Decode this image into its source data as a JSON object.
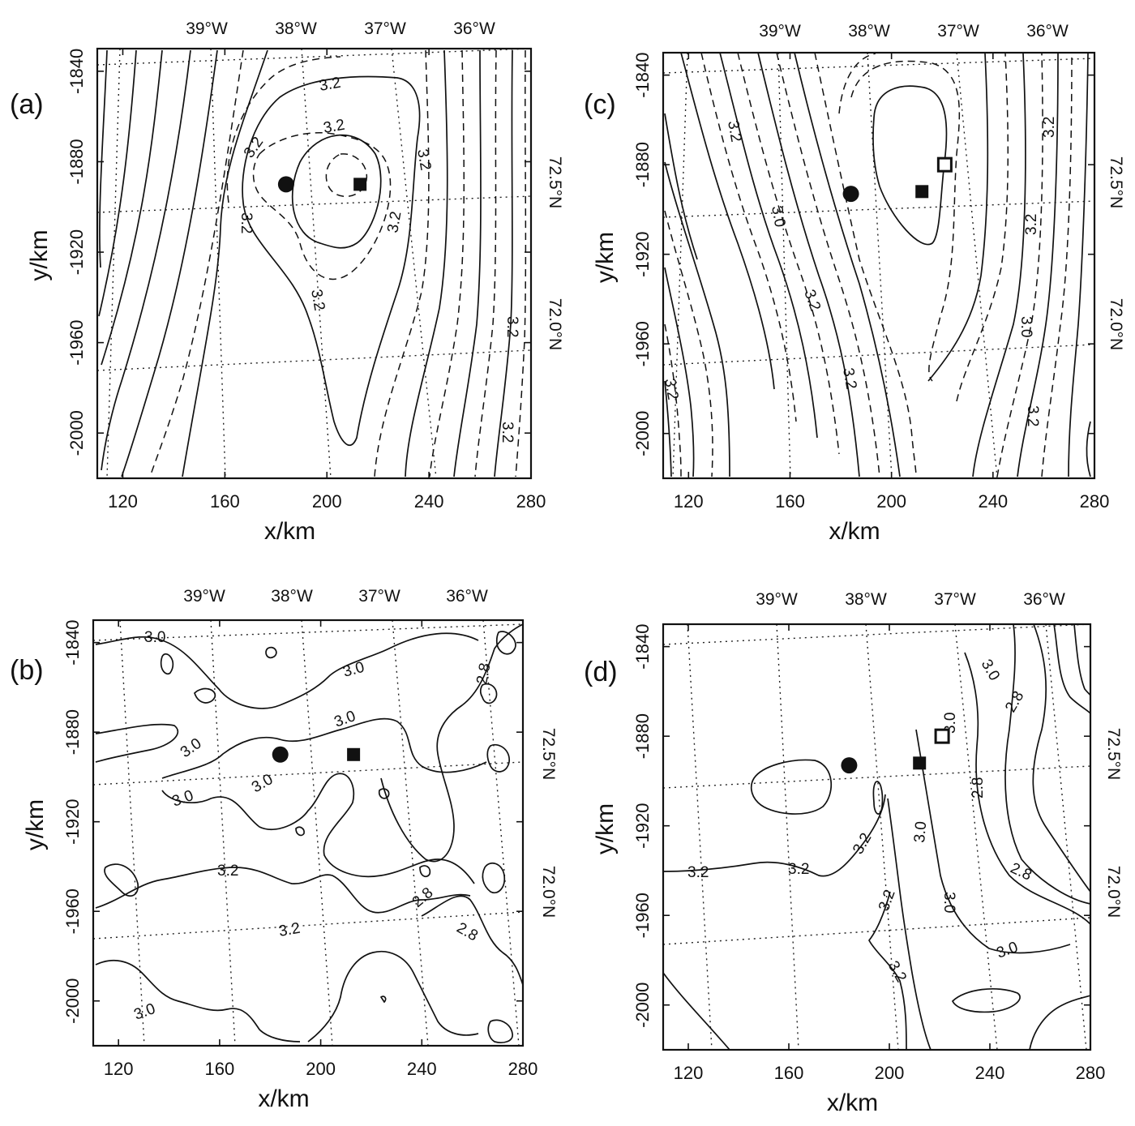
{
  "chart_data": [
    {
      "panel": "(a)",
      "type": "contour",
      "xlabel": "x/km",
      "ylabel": "y/km",
      "xlim": [
        110,
        280
      ],
      "ylim": [
        -2020,
        -1830
      ],
      "x_ticks": [
        "120",
        "160",
        "200",
        "240",
        "280"
      ],
      "y_ticks": [
        "-1840",
        "-1880",
        "-1920",
        "-1960",
        "-2000"
      ],
      "lon_labels": [
        "39°W",
        "38°W",
        "37°W",
        "36°W"
      ],
      "lat_labels": [
        "72.5°N",
        "72.0°N"
      ],
      "contour_labels": [
        "3.2",
        "3.2",
        "3.2",
        "3.2",
        "3.2",
        "3.2",
        "3.2",
        "3.2",
        "3.2"
      ],
      "markers": [
        {
          "shape": "filled-circle",
          "x": 184,
          "y": -1890
        },
        {
          "shape": "filled-square",
          "x": 213,
          "y": -1890
        }
      ]
    },
    {
      "panel": "(b)",
      "type": "contour",
      "xlabel": "x/km",
      "ylabel": "y/km",
      "xlim": [
        110,
        280
      ],
      "ylim": [
        -2020,
        -1830
      ],
      "x_ticks": [
        "120",
        "160",
        "200",
        "240",
        "280"
      ],
      "y_ticks": [
        "-1840",
        "-1880",
        "-1920",
        "-1960",
        "-2000"
      ],
      "lon_labels": [
        "39°W",
        "38°W",
        "37°W",
        "36°W"
      ],
      "lat_labels": [
        "72.5°N",
        "72.0°N"
      ],
      "contour_labels": [
        "3.0",
        "3.0",
        "3.0",
        "3.0",
        "3.0",
        "3.0",
        "3.2",
        "3.2",
        "2.8",
        "2.8",
        "3.0",
        "2.8"
      ],
      "markers": [
        {
          "shape": "filled-circle",
          "x": 184,
          "y": -1890
        },
        {
          "shape": "filled-square",
          "x": 213,
          "y": -1890
        }
      ]
    },
    {
      "panel": "(c)",
      "type": "contour",
      "xlabel": "x/km",
      "ylabel": "y/km",
      "xlim": [
        110,
        280
      ],
      "ylim": [
        -2020,
        -1830
      ],
      "x_ticks": [
        "120",
        "160",
        "200",
        "240",
        "280"
      ],
      "y_ticks": [
        "-1840",
        "-1880",
        "-1920",
        "-1960",
        "-2000"
      ],
      "lon_labels": [
        "39°W",
        "38°W",
        "37°W",
        "36°W"
      ],
      "lat_labels": [
        "72.5°N",
        "72.0°N"
      ],
      "contour_labels": [
        "3.2",
        "3.0",
        "3.2",
        "3.2",
        "3.2",
        "3.2",
        "3.2",
        "3.2",
        "3.0"
      ],
      "markers": [
        {
          "shape": "filled-circle",
          "x": 184,
          "y": -1893
        },
        {
          "shape": "filled-square",
          "x": 212,
          "y": -1892
        },
        {
          "shape": "open-square",
          "x": 221,
          "y": -1880
        }
      ]
    },
    {
      "panel": "(d)",
      "type": "contour",
      "xlabel": "x/km",
      "ylabel": "y/km",
      "xlim": [
        110,
        280
      ],
      "ylim": [
        -2020,
        -1830
      ],
      "x_ticks": [
        "120",
        "160",
        "200",
        "240",
        "280"
      ],
      "y_ticks": [
        "-1840",
        "-1880",
        "-1920",
        "-1960",
        "-2000"
      ],
      "lon_labels": [
        "39°W",
        "38°W",
        "37°W",
        "36°W"
      ],
      "lat_labels": [
        "72.5°N",
        "72.0°N"
      ],
      "contour_labels": [
        "3.0",
        "2.8",
        "3.0",
        "2.8",
        "3.0",
        "2.8",
        "3.2",
        "3.2",
        "3.2",
        "3.2",
        "3.0",
        "3.0",
        "3.2"
      ],
      "markers": [
        {
          "shape": "filled-circle",
          "x": 184,
          "y": -1893
        },
        {
          "shape": "filled-square",
          "x": 212,
          "y": -1892
        },
        {
          "shape": "open-square",
          "x": 221,
          "y": -1880
        }
      ]
    }
  ]
}
